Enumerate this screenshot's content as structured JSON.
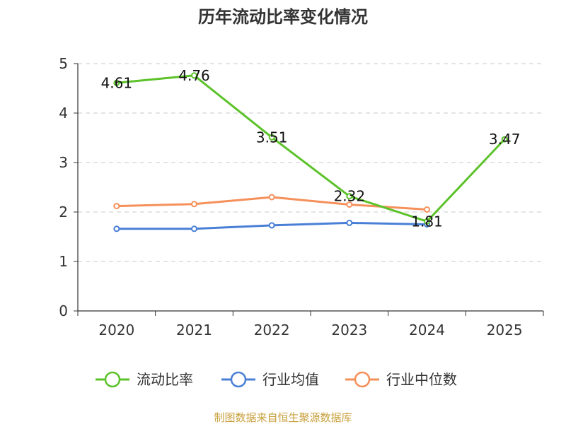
{
  "chart_data": {
    "type": "line",
    "title": "历年流动比率变化情况",
    "categories": [
      "2020",
      "2021",
      "2022",
      "2023",
      "2024",
      "2025"
    ],
    "ylim": [
      0,
      5
    ],
    "yticks": [
      "0",
      "1",
      "2",
      "3",
      "4",
      "5"
    ],
    "grid": true,
    "legend_position": "bottom",
    "series": [
      {
        "name": "流动比率",
        "color": "#5cc22a",
        "values": [
          4.61,
          4.76,
          3.51,
          2.32,
          1.81,
          3.47
        ],
        "labels": [
          "4.61",
          "4.76",
          "3.51",
          "2.32",
          "1.81",
          "3.47"
        ]
      },
      {
        "name": "行业均值",
        "color": "#4a7fd6",
        "values": [
          1.66,
          1.66,
          1.73,
          1.78,
          1.75,
          null
        ]
      },
      {
        "name": "行业中位数",
        "color": "#f5905a",
        "values": [
          2.12,
          2.16,
          2.3,
          2.15,
          2.05,
          null
        ]
      }
    ]
  },
  "source": {
    "text": "制图数据来自恒生聚源数据库",
    "color": "#c8a03c"
  }
}
